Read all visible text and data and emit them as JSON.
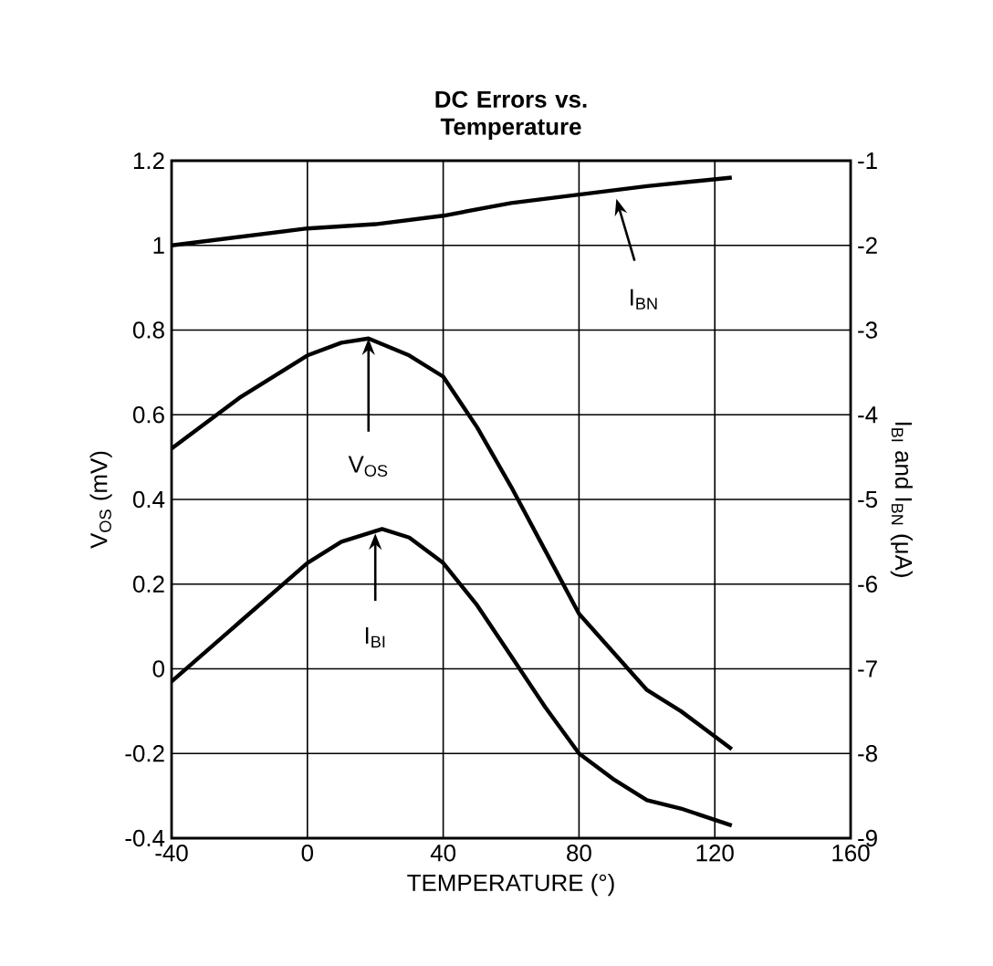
{
  "chart_data": {
    "type": "line",
    "title": "DC Errors vs. Temperature",
    "xlabel": "TEMPERATURE (°)",
    "ylabel": "V$_{OS}$ (mV)",
    "y2label": "I$_{BI}$ and I$_{BN}$ (μA)",
    "xlim": [
      -40,
      160
    ],
    "xticks": [
      -40,
      0,
      40,
      80,
      120,
      160
    ],
    "ylim": [
      -0.4,
      1.2
    ],
    "yticks": [
      -0.4,
      -0.2,
      0,
      0.2,
      0.4,
      0.6,
      0.8,
      1,
      1.2
    ],
    "y2lim": [
      -9,
      -1
    ],
    "y2ticks": [
      -9,
      -8,
      -7,
      -6,
      -5,
      -4,
      -3,
      -2,
      -1
    ],
    "grid": true,
    "series": [
      {
        "color": "#000000",
        "x": [
          -40,
          -20,
          0,
          10,
          18,
          30,
          40,
          50,
          60,
          70,
          80,
          90,
          100,
          110,
          125
        ],
        "values": [
          0.52,
          0.64,
          0.74,
          0.77,
          0.78,
          0.74,
          0.69,
          0.57,
          0.43,
          0.28,
          0.13,
          0.04,
          -0.05,
          -0.1,
          -0.19
        ]
      },
      {
        "color": "#000000",
        "axis": "y2",
        "x": [
          -40,
          -20,
          0,
          10,
          22,
          30,
          40,
          50,
          60,
          70,
          80,
          90,
          100,
          110,
          125
        ],
        "values": [
          -7.15,
          -6.45,
          -5.75,
          -5.5,
          -5.35,
          -5.45,
          -5.75,
          -6.25,
          -6.85,
          -7.45,
          -8,
          -8.3,
          -8.55,
          -8.65,
          -8.85
        ]
      },
      {
        "color": "#000000",
        "axis": "y2",
        "x": [
          -40,
          0,
          20,
          40,
          60,
          80,
          100,
          125
        ],
        "values": [
          -2,
          -1.8,
          -1.75,
          -1.65,
          -1.5,
          -1.4,
          -1.3,
          -1.2
        ]
      }
    ],
    "annotations": [
      {
        "text": "I$_{BN}$",
        "x": 91,
        "y": 1.11
      },
      {
        "text": "V$_{OS}$",
        "x": 18,
        "y": 0.78
      },
      {
        "text": "I$_{BI}$",
        "x": 20,
        "y": 0.32
      }
    ]
  }
}
